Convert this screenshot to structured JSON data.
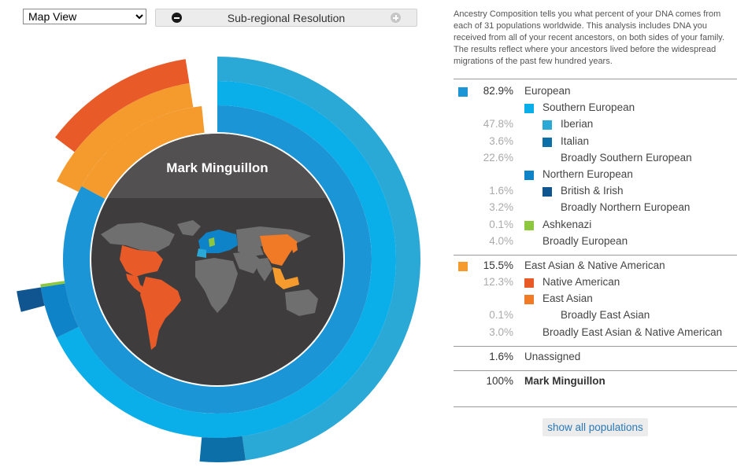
{
  "controls": {
    "view_selected": "Map View",
    "resolution_label": "Sub-regional Resolution"
  },
  "intro_text": "Ancestry Composition tells you what percent of your DNA comes from each of 31 populations worldwide. This analysis includes DNA you received from all of your recent ancestors, on both sides of your family. The results reflect where your ancestors lived before the widespread migrations of the past few hundred years.",
  "person_name": "Mark Minguillon",
  "colors": {
    "european": "#1b95d6",
    "southern_european": "#0aaee8",
    "iberian": "#2aa8d6",
    "italian": "#0d6fa8",
    "northern_european": "#0f83c7",
    "british_irish": "#10558f",
    "ashkenazi": "#8dc63f",
    "east_asian_native": "#f59a2c",
    "native_american": "#e85a27",
    "east_asian": "#f07a26",
    "map_bg": "#3e3c3c",
    "land": "#6f6f6f"
  },
  "legend": [
    {
      "pct": "82.9%",
      "label": "European",
      "color": "#1b95d6",
      "indent": 0,
      "top": true
    },
    {
      "pct": "",
      "label": "Southern European",
      "color": "#0aaee8",
      "indent": 1
    },
    {
      "pct": "47.8%",
      "label": "Iberian",
      "color": "#2aa8d6",
      "indent": 2
    },
    {
      "pct": "3.6%",
      "label": "Italian",
      "color": "#0d6fa8",
      "indent": 2
    },
    {
      "pct": "22.6%",
      "label": "Broadly Southern European",
      "color": "",
      "indent": 2
    },
    {
      "pct": "",
      "label": "Northern European",
      "color": "#0f83c7",
      "indent": 1
    },
    {
      "pct": "1.6%",
      "label": "British & Irish",
      "color": "#10558f",
      "indent": 2
    },
    {
      "pct": "3.2%",
      "label": "Broadly Northern European",
      "color": "",
      "indent": 2
    },
    {
      "pct": "0.1%",
      "label": "Ashkenazi",
      "color": "#8dc63f",
      "indent": 1
    },
    {
      "pct": "4.0%",
      "label": "Broadly European",
      "color": "",
      "indent": 1
    },
    {
      "pct": "15.5%",
      "label": "East Asian & Native American",
      "color": "#f59a2c",
      "indent": 0,
      "top": true,
      "sep": true
    },
    {
      "pct": "12.3%",
      "label": "Native American",
      "color": "#e85a27",
      "indent": 1
    },
    {
      "pct": "",
      "label": "East Asian",
      "color": "#f07a26",
      "indent": 1
    },
    {
      "pct": "0.1%",
      "label": "Broadly East Asian",
      "color": "",
      "indent": 2
    },
    {
      "pct": "3.0%",
      "label": "Broadly East Asian & Native American",
      "color": "",
      "indent": 1
    },
    {
      "pct": "1.6%",
      "label": "Unassigned",
      "color": "",
      "indent": 0,
      "top": true,
      "sep": true
    },
    {
      "pct": "100%",
      "label": "Mark Minguillon",
      "color": "",
      "indent": 0,
      "top": true,
      "sep": true,
      "total": true
    }
  ],
  "show_all_label": "show all populations"
}
